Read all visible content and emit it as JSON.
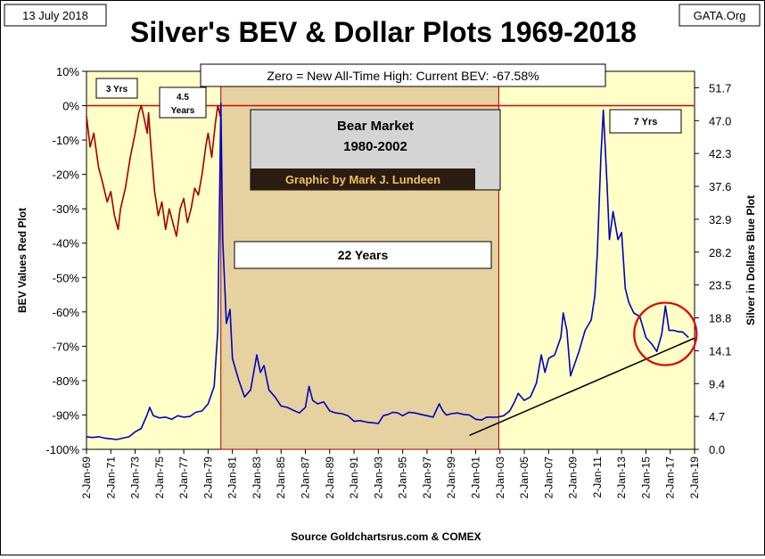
{
  "header": {
    "date": "13 July 2018",
    "source_tag": "GATA.Org",
    "title": "Silver's BEV & Dollar Plots 1969-2018"
  },
  "annotations": {
    "top_box": "Zero = New All-Time High: Current BEV: -67.58%",
    "bear_market_line1": "Bear Market",
    "bear_market_line2": "1980-2002",
    "credit": "Graphic by Mark J. Lundeen",
    "span_22": "22 Years",
    "span_3": "3 Yrs",
    "span_45_line1": "4.5",
    "span_45_line2": "Years",
    "span_7": "7 Yrs"
  },
  "footer": {
    "source": "Source Goldchartsrus.com & COMEX"
  },
  "colors": {
    "plot_bg": "#ffffc8",
    "bear_shade": "#e6d2a0",
    "bev_red": "#a00000",
    "price_blue": "#0000c0",
    "zero_line": "#e00000",
    "circle": "#e00000",
    "trend_line": "#000000"
  },
  "chart_data": {
    "type": "line",
    "title": "Silver's BEV & Dollar Plots 1969-2018",
    "left_axis": {
      "label": "BEV Values   Red Plot",
      "range": [
        -100,
        10
      ],
      "ticks": [
        "10%",
        "0%",
        "-10%",
        "-20%",
        "-30%",
        "-40%",
        "-50%",
        "-60%",
        "-70%",
        "-80%",
        "-90%",
        "-100%"
      ]
    },
    "right_axis": {
      "label": "Silver in Dollars   Blue Plot",
      "range": [
        0,
        54.05
      ],
      "ticks": [
        "51.7",
        "47.0",
        "42.3",
        "37.6",
        "32.9",
        "28.2",
        "23.5",
        "18.8",
        "14.1",
        "9.4",
        "4.7",
        "0.0"
      ]
    },
    "x_axis": {
      "range": [
        1969,
        2019
      ],
      "tick_labels": [
        "2-Jan-69",
        "2-Jan-71",
        "2-Jan-73",
        "2-Jan-75",
        "2-Jan-77",
        "2-Jan-79",
        "2-Jan-81",
        "2-Jan-83",
        "2-Jan-85",
        "2-Jan-87",
        "2-Jan-89",
        "2-Jan-91",
        "2-Jan-93",
        "2-Jan-95",
        "2-Jan-97",
        "2-Jan-99",
        "2-Jan-01",
        "2-Jan-03",
        "2-Jan-05",
        "2-Jan-07",
        "2-Jan-09",
        "2-Jan-11",
        "2-Jan-13",
        "2-Jan-15",
        "2-Jan-17",
        "2-Jan-19"
      ]
    },
    "bear_market": [
      1980.05,
      2002.9
    ],
    "series": [
      {
        "name": "BEV Values Red Plot",
        "axis": "left",
        "x": [
          1969.0,
          1969.3,
          1969.6,
          1970.0,
          1970.3,
          1970.7,
          1971.0,
          1971.3,
          1971.6,
          1971.8,
          1972.2,
          1972.6,
          1973.0,
          1973.3,
          1973.5,
          1973.7,
          1974.0,
          1974.1,
          1974.3,
          1974.6,
          1974.9,
          1975.2,
          1975.5,
          1975.8,
          1976.1,
          1976.4,
          1976.7,
          1977.0,
          1977.3,
          1977.6,
          1977.9,
          1978.2,
          1978.5,
          1978.8,
          1979.0,
          1979.3,
          1979.6,
          1979.8,
          1980.0,
          1980.05
        ],
        "values": [
          -3,
          -12,
          -8,
          -18,
          -22,
          -28,
          -25,
          -32,
          -36,
          -30,
          -24,
          -15,
          -8,
          -2,
          0,
          -3,
          -8,
          -2,
          -12,
          -25,
          -32,
          -28,
          -36,
          -30,
          -34,
          -38,
          -30,
          -27,
          -34,
          -30,
          -24,
          -26,
          -20,
          -12,
          -8,
          -15,
          -5,
          0,
          -3,
          0
        ]
      },
      {
        "name": "Silver in Dollars Blue Plot",
        "axis": "right",
        "x": [
          1969.0,
          1969.5,
          1970.0,
          1970.5,
          1971.0,
          1971.5,
          1972.0,
          1972.5,
          1973.0,
          1973.5,
          1974.0,
          1974.2,
          1974.5,
          1975.0,
          1975.5,
          1976.0,
          1976.5,
          1977.0,
          1977.5,
          1978.0,
          1978.5,
          1979.0,
          1979.5,
          1979.8,
          1980.05,
          1980.2,
          1980.5,
          1980.8,
          1981.0,
          1981.5,
          1982.0,
          1982.5,
          1983.0,
          1983.3,
          1983.6,
          1984.0,
          1984.5,
          1985.0,
          1985.5,
          1986.0,
          1986.5,
          1987.0,
          1987.3,
          1987.6,
          1988.0,
          1988.5,
          1989.0,
          1989.5,
          1990.0,
          1990.5,
          1991.0,
          1991.5,
          1992.0,
          1992.5,
          1993.0,
          1993.4,
          1993.8,
          1994.2,
          1994.6,
          1995.0,
          1995.5,
          1996.0,
          1996.5,
          1997.0,
          1997.5,
          1998.0,
          1998.3,
          1998.6,
          1999.0,
          1999.5,
          2000.0,
          2000.5,
          2001.0,
          2001.5,
          2001.9,
          2002.3,
          2002.8,
          2003.3,
          2003.8,
          2004.2,
          2004.5,
          2005.0,
          2005.5,
          2006.0,
          2006.4,
          2006.7,
          2007.0,
          2007.5,
          2008.0,
          2008.2,
          2008.5,
          2008.8,
          2009.0,
          2009.5,
          2010.0,
          2010.5,
          2010.8,
          2011.0,
          2011.3,
          2011.5,
          2011.8,
          2012.0,
          2012.3,
          2012.7,
          2013.0,
          2013.3,
          2013.6,
          2014.0,
          2014.5,
          2015.0,
          2015.5,
          2015.9,
          2016.3,
          2016.6,
          2016.9,
          2017.3,
          2017.7,
          2018.0,
          2018.5
        ],
        "values": [
          1.8,
          1.7,
          1.8,
          1.6,
          1.5,
          1.4,
          1.6,
          1.8,
          2.5,
          3.0,
          5.0,
          6.0,
          4.8,
          4.5,
          4.6,
          4.3,
          4.8,
          4.6,
          4.7,
          5.3,
          5.5,
          6.5,
          9.0,
          17.0,
          49.5,
          30.0,
          18.0,
          20.0,
          13.0,
          10.0,
          7.5,
          8.5,
          13.5,
          11.0,
          12.0,
          8.5,
          7.5,
          6.2,
          6.0,
          5.6,
          5.2,
          6.0,
          9.0,
          7.0,
          6.5,
          6.8,
          5.5,
          5.2,
          5.1,
          4.8,
          4.0,
          4.1,
          3.9,
          3.8,
          3.7,
          4.8,
          5.0,
          5.3,
          5.2,
          4.8,
          5.3,
          5.2,
          5.0,
          4.8,
          4.6,
          6.5,
          5.5,
          4.9,
          5.1,
          5.2,
          5.0,
          4.9,
          4.3,
          4.2,
          4.6,
          4.6,
          4.6,
          4.8,
          5.5,
          6.8,
          8.0,
          7.0,
          7.5,
          9.5,
          13.5,
          11.0,
          13.0,
          13.5,
          16.0,
          19.5,
          17.0,
          10.5,
          11.5,
          14.0,
          17.0,
          18.5,
          22.0,
          28.0,
          42.0,
          48.5,
          38.0,
          30.0,
          34.0,
          30.0,
          31.0,
          23.0,
          21.0,
          19.5,
          19.0,
          16.0,
          15.0,
          14.0,
          16.5,
          20.5,
          17.0,
          17.0,
          16.8,
          16.8,
          16.0
        ]
      }
    ],
    "trend_line": {
      "x": [
        2000.5,
        2019.0
      ],
      "y": [
        2.0,
        15.9
      ]
    },
    "highlight_circle": {
      "x": 2016.6,
      "y": 16.5
    }
  }
}
